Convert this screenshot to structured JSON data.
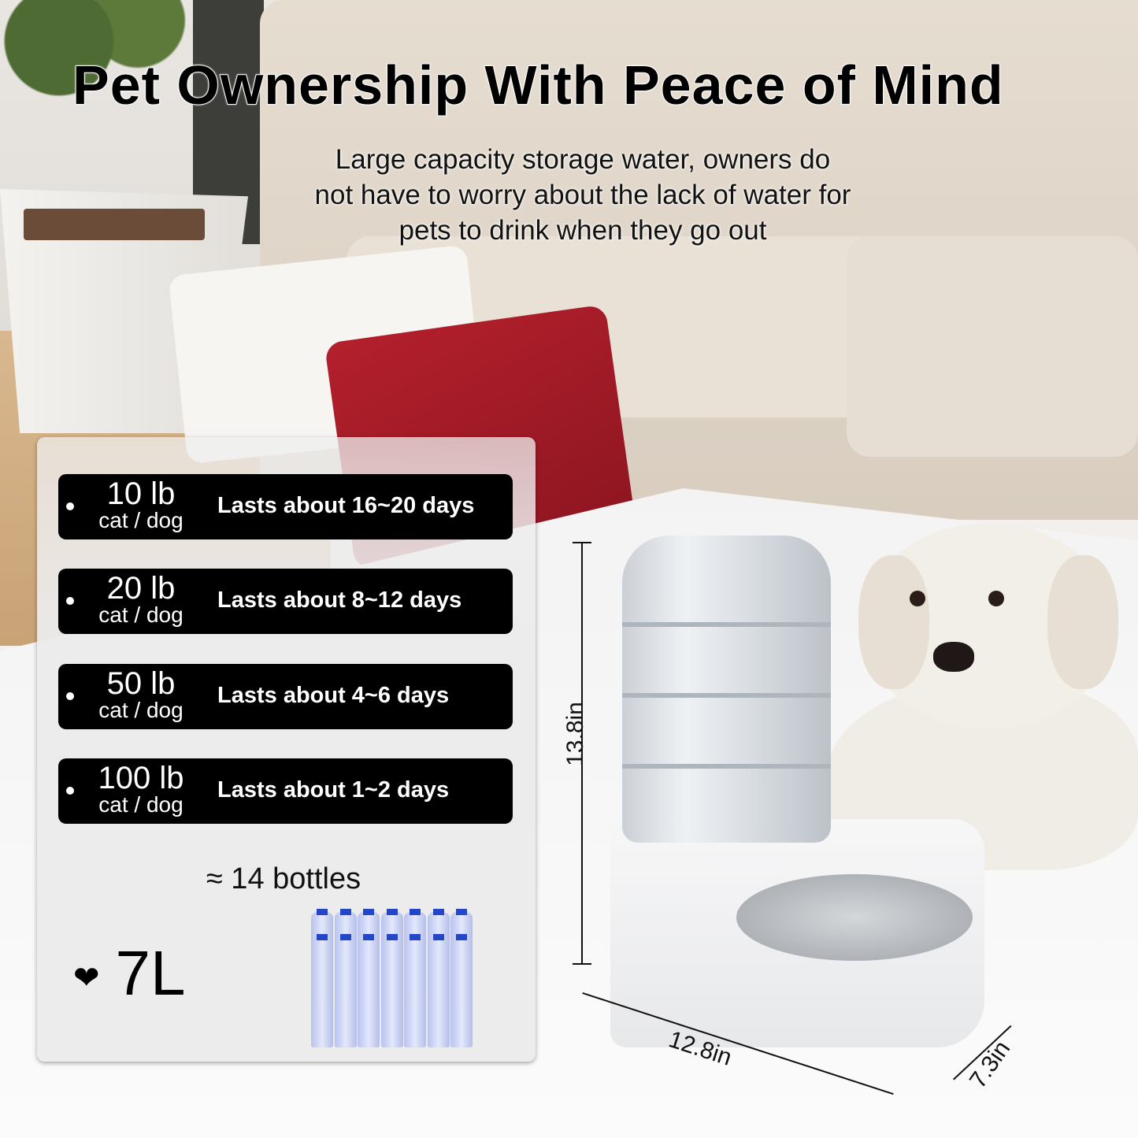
{
  "headline": "Pet Ownership With Peace of Mind",
  "subtitle": [
    "Large capacity storage water, owners do",
    "not have to worry about the lack of water for",
    "pets to drink when they go out"
  ],
  "weights": [
    {
      "weight": "10 lb",
      "type": "cat / dog",
      "duration": "Lasts about 16~20 days"
    },
    {
      "weight": "20 lb",
      "type": "cat / dog",
      "duration": "Lasts about 8~12 days"
    },
    {
      "weight": "50 lb",
      "type": "cat / dog",
      "duration": "Lasts about 4~6 days"
    },
    {
      "weight": "100 lb",
      "type": "cat / dog",
      "duration": "Lasts about 1~2 days"
    }
  ],
  "bottles_label": "≈ 14 bottles",
  "capacity": "7L",
  "dimensions": {
    "height": "13.8in",
    "length": "12.8in",
    "width": "7.3in"
  },
  "colors": {
    "bottle_cap": "#2447c9",
    "pillow": "#a51c28",
    "row_bg": "#000000"
  }
}
